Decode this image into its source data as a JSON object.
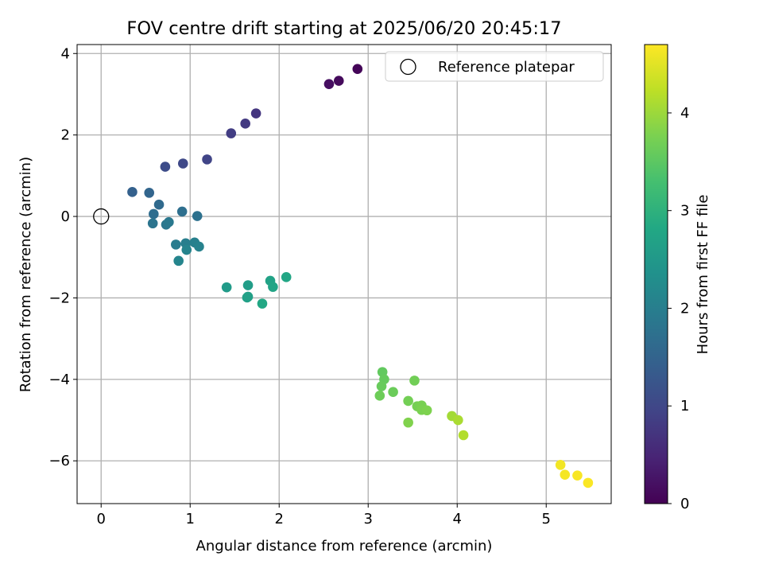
{
  "chart_data": {
    "type": "scatter",
    "title": "FOV centre drift starting at 2025/06/20 20:45:17",
    "xlabel": "Angular distance from reference (arcmin)",
    "ylabel": "Rotation from reference (arcmin)",
    "xlim": [
      -0.27,
      5.73
    ],
    "ylim": [
      -7.05,
      4.22
    ],
    "xticks": [
      0,
      1,
      2,
      3,
      4,
      5
    ],
    "yticks": [
      -6,
      -4,
      -2,
      0,
      2,
      4
    ],
    "xtick_labels": [
      "0",
      "1",
      "2",
      "3",
      "4",
      "5"
    ],
    "ytick_labels": [
      "−6",
      "−4",
      "−2",
      "0",
      "2",
      "4"
    ],
    "grid": true,
    "legend": {
      "placement": "top-right",
      "entries": [
        "Reference platepar"
      ]
    },
    "reference_point": {
      "x": 0,
      "y": 0
    },
    "colorbar": {
      "label": "Hours from first FF file",
      "colormap": "viridis",
      "range": [
        0,
        4.7
      ],
      "ticks": [
        0,
        1,
        2,
        3,
        4
      ],
      "tick_labels": [
        "0",
        "1",
        "2",
        "3",
        "4"
      ]
    },
    "series": [
      {
        "points": [
          {
            "x": 2.88,
            "y": 3.62,
            "c": 0.05
          },
          {
            "x": 2.67,
            "y": 3.33,
            "c": 0.12
          },
          {
            "x": 2.56,
            "y": 3.25,
            "c": 0.18
          },
          {
            "x": 1.74,
            "y": 2.53,
            "c": 0.72
          },
          {
            "x": 1.62,
            "y": 2.28,
            "c": 0.78
          },
          {
            "x": 1.46,
            "y": 2.04,
            "c": 0.84
          },
          {
            "x": 1.19,
            "y": 1.4,
            "c": 0.95
          },
          {
            "x": 0.92,
            "y": 1.3,
            "c": 1.02
          },
          {
            "x": 0.72,
            "y": 1.22,
            "c": 1.08
          },
          {
            "x": 0.35,
            "y": 0.6,
            "c": 1.45
          },
          {
            "x": 0.54,
            "y": 0.58,
            "c": 1.52
          },
          {
            "x": 0.65,
            "y": 0.29,
            "c": 1.62
          },
          {
            "x": 0.59,
            "y": 0.06,
            "c": 1.68
          },
          {
            "x": 0.91,
            "y": 0.12,
            "c": 1.72
          },
          {
            "x": 1.08,
            "y": 0.01,
            "c": 1.75
          },
          {
            "x": 0.58,
            "y": -0.17,
            "c": 1.8
          },
          {
            "x": 0.73,
            "y": -0.2,
            "c": 1.85
          },
          {
            "x": 0.76,
            "y": -0.14,
            "c": 1.88
          },
          {
            "x": 0.84,
            "y": -0.69,
            "c": 1.95
          },
          {
            "x": 0.95,
            "y": -0.66,
            "c": 2.0
          },
          {
            "x": 1.05,
            "y": -0.64,
            "c": 2.03
          },
          {
            "x": 1.1,
            "y": -0.74,
            "c": 2.06
          },
          {
            "x": 0.96,
            "y": -0.82,
            "c": 2.1
          },
          {
            "x": 0.87,
            "y": -1.09,
            "c": 2.13
          },
          {
            "x": 1.41,
            "y": -1.74,
            "c": 2.55
          },
          {
            "x": 1.65,
            "y": -1.69,
            "c": 2.6
          },
          {
            "x": 1.65,
            "y": -1.97,
            "c": 2.63
          },
          {
            "x": 1.64,
            "y": -1.99,
            "c": 2.65
          },
          {
            "x": 1.9,
            "y": -1.58,
            "c": 2.7
          },
          {
            "x": 1.93,
            "y": -1.73,
            "c": 2.73
          },
          {
            "x": 2.08,
            "y": -1.49,
            "c": 2.78
          },
          {
            "x": 1.81,
            "y": -2.14,
            "c": 2.8
          },
          {
            "x": 3.16,
            "y": -3.82,
            "c": 3.55
          },
          {
            "x": 3.18,
            "y": -4.0,
            "c": 3.58
          },
          {
            "x": 3.15,
            "y": -4.17,
            "c": 3.6
          },
          {
            "x": 3.28,
            "y": -4.31,
            "c": 3.63
          },
          {
            "x": 3.13,
            "y": -4.4,
            "c": 3.65
          },
          {
            "x": 3.52,
            "y": -4.03,
            "c": 3.68
          },
          {
            "x": 3.45,
            "y": -4.53,
            "c": 3.7
          },
          {
            "x": 3.55,
            "y": -4.66,
            "c": 3.72
          },
          {
            "x": 3.6,
            "y": -4.64,
            "c": 3.74
          },
          {
            "x": 3.6,
            "y": -4.75,
            "c": 3.76
          },
          {
            "x": 3.66,
            "y": -4.76,
            "c": 3.78
          },
          {
            "x": 3.45,
            "y": -5.06,
            "c": 3.8
          },
          {
            "x": 3.94,
            "y": -4.9,
            "c": 4.05
          },
          {
            "x": 4.01,
            "y": -5.0,
            "c": 4.1
          },
          {
            "x": 4.07,
            "y": -5.37,
            "c": 4.15
          },
          {
            "x": 5.16,
            "y": -6.1,
            "c": 4.62
          },
          {
            "x": 5.21,
            "y": -6.34,
            "c": 4.64
          },
          {
            "x": 5.35,
            "y": -6.36,
            "c": 4.66
          },
          {
            "x": 5.47,
            "y": -6.54,
            "c": 4.68
          }
        ]
      }
    ]
  }
}
